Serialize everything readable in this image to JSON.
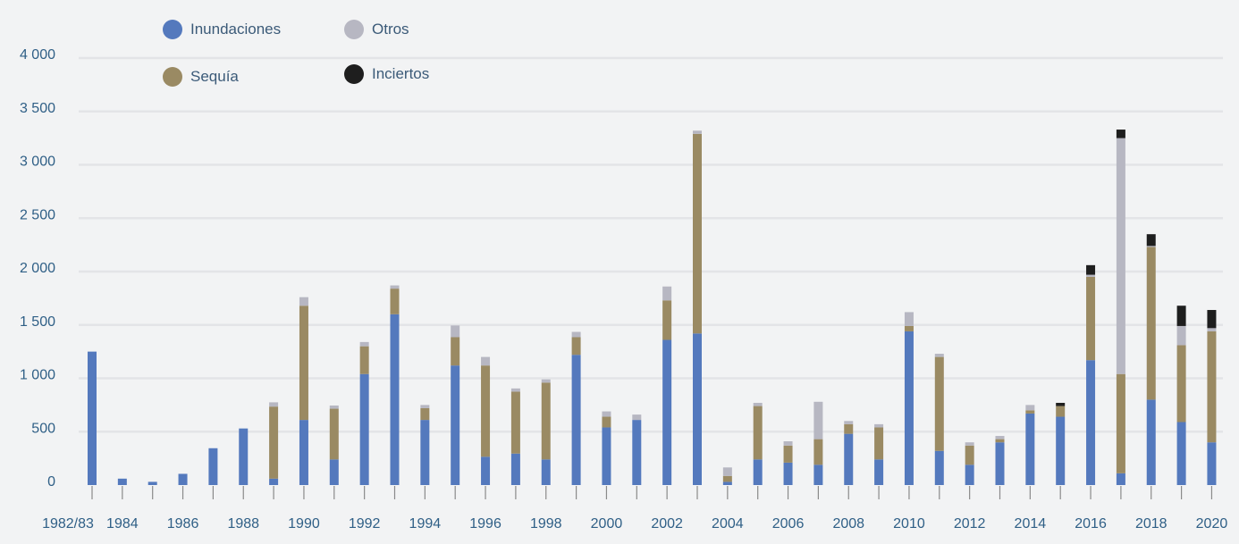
{
  "legend": {
    "flood": "Inundaciones",
    "drought": "Sequía",
    "other": "Otros",
    "uncertain": "Inciertos"
  },
  "colors": {
    "flood": "#5479bd",
    "drought": "#9a8a63",
    "other": "#b7b7c2",
    "uncertain": "#1e1e1e",
    "grid": "#e3e4e7",
    "axis_text": "#2f5f86",
    "tick_mark": "#8a8a8a"
  },
  "chart_data": {
    "type": "bar",
    "stacked": true,
    "categories": [
      "1982/83",
      "1984",
      "1985",
      "1986",
      "1987",
      "1988",
      "1989",
      "1990",
      "1991",
      "1992",
      "1993",
      "1994",
      "1995",
      "1996",
      "1997",
      "1998",
      "1999",
      "2000",
      "2001",
      "2002",
      "2003",
      "2004",
      "2005",
      "2006",
      "2007",
      "2008",
      "2009",
      "2010",
      "2011",
      "2012",
      "2013",
      "2014",
      "2015",
      "2016",
      "2017",
      "2018",
      "2019",
      "2020"
    ],
    "x_tick_labels": [
      "1982/83",
      "1984",
      "1986",
      "1988",
      "1990",
      "1992",
      "1994",
      "1996",
      "1998",
      "2000",
      "2002",
      "2004",
      "2006",
      "2008",
      "2010",
      "2012",
      "2014",
      "2016",
      "2018",
      "2020"
    ],
    "y_ticks": [
      0,
      500,
      1000,
      1500,
      2000,
      2500,
      3000,
      3500,
      4000
    ],
    "y_tick_labels": [
      "0",
      "500",
      "1 000",
      "1 500",
      "2 000",
      "2 500",
      "3 000",
      "3 500",
      "4 000"
    ],
    "ylim": [
      0,
      4000
    ],
    "grid": true,
    "legend_position": "top-left",
    "series": [
      {
        "name": "Inundaciones",
        "key": "flood",
        "values": [
          1250,
          60,
          30,
          105,
          345,
          530,
          60,
          610,
          240,
          1040,
          1600,
          610,
          1120,
          265,
          295,
          240,
          1220,
          540,
          610,
          1360,
          1420,
          30,
          240,
          210,
          190,
          480,
          240,
          1440,
          320,
          190,
          400,
          670,
          640,
          1170,
          110,
          800,
          590,
          400
        ]
      },
      {
        "name": "Sequía",
        "key": "drought",
        "values": [
          0,
          0,
          0,
          0,
          0,
          0,
          675,
          1070,
          475,
          260,
          240,
          110,
          265,
          855,
          580,
          720,
          165,
          100,
          0,
          370,
          1870,
          55,
          500,
          160,
          240,
          90,
          300,
          50,
          880,
          180,
          30,
          30,
          100,
          780,
          930,
          1430,
          720,
          1040
        ]
      },
      {
        "name": "Otros",
        "key": "other",
        "values": [
          0,
          0,
          0,
          0,
          0,
          0,
          40,
          80,
          30,
          40,
          30,
          30,
          110,
          80,
          30,
          30,
          50,
          50,
          50,
          130,
          30,
          80,
          30,
          40,
          350,
          30,
          30,
          130,
          30,
          30,
          30,
          50,
          0,
          20,
          2210,
          10,
          180,
          30
        ]
      },
      {
        "name": "Inciertos",
        "key": "uncertain",
        "values": [
          0,
          0,
          0,
          0,
          0,
          0,
          0,
          0,
          0,
          0,
          0,
          0,
          0,
          0,
          0,
          0,
          0,
          0,
          0,
          0,
          0,
          0,
          0,
          0,
          0,
          0,
          0,
          0,
          0,
          0,
          0,
          0,
          30,
          90,
          80,
          110,
          190,
          170
        ]
      }
    ]
  }
}
